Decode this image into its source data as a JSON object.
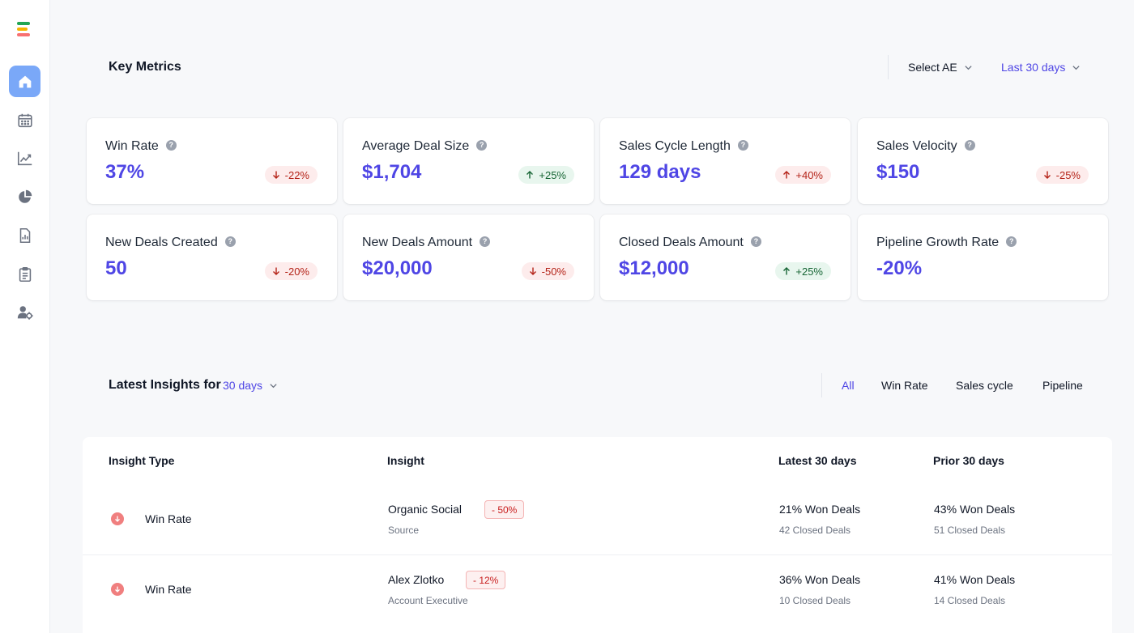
{
  "sidebar": {
    "logo_colors": [
      "#22a653",
      "#f5b400",
      "#f87171"
    ],
    "items": [
      {
        "icon": "home-icon",
        "active": true
      },
      {
        "icon": "calendar-icon",
        "active": false
      },
      {
        "icon": "trend-chart-icon",
        "active": false
      },
      {
        "icon": "pie-chart-icon",
        "active": false
      },
      {
        "icon": "report-icon",
        "active": false
      },
      {
        "icon": "clipboard-icon",
        "active": false
      },
      {
        "icon": "user-settings-icon",
        "active": false
      }
    ]
  },
  "header": {
    "title": "Key Metrics",
    "select_ae": "Select AE",
    "date_range": "Last 30 days"
  },
  "metrics": [
    {
      "label": "Win Rate",
      "value": "37%",
      "change": "-22%",
      "direction": "down",
      "tone": "negative"
    },
    {
      "label": "Average Deal Size",
      "value": "$1,704",
      "change": "+25%",
      "direction": "up",
      "tone": "positive"
    },
    {
      "label": "Sales Cycle Length",
      "value": "129 days",
      "change": "+40%",
      "direction": "up",
      "tone": "negative"
    },
    {
      "label": "Sales Velocity",
      "value": "$150",
      "change": "-25%",
      "direction": "down",
      "tone": "negative"
    },
    {
      "label": "New Deals Created",
      "value": "50",
      "change": "-20%",
      "direction": "down",
      "tone": "negative"
    },
    {
      "label": "New Deals Amount",
      "value": "$20,000",
      "change": "-50%",
      "direction": "down",
      "tone": "negative"
    },
    {
      "label": "Closed Deals Amount",
      "value": "$12,000",
      "change": "+25%",
      "direction": "up",
      "tone": "positive"
    },
    {
      "label": "Pipeline Growth Rate",
      "value": "-20%",
      "change": null
    }
  ],
  "insights": {
    "title_prefix": "Latest Insights for",
    "period": "30 days",
    "filters": [
      "All",
      "Win Rate",
      "Sales cycle",
      "Pipeline"
    ],
    "active_filter": "All",
    "columns": [
      "Insight Type",
      "Insight",
      "Latest 30 days",
      "Prior 30 days"
    ],
    "rows": [
      {
        "type": "Win Rate",
        "insight": "Organic Social",
        "change": "- 50%",
        "category": "Source",
        "latest_main": "21% Won Deals",
        "latest_sub": "42 Closed Deals",
        "prior_main": "43% Won Deals",
        "prior_sub": "51 Closed Deals"
      },
      {
        "type": "Win Rate",
        "insight": "Alex Zlotko",
        "change": "- 12%",
        "category": "Account Executive",
        "latest_main": "36% Won Deals",
        "latest_sub": "10 Closed Deals",
        "prior_main": "41% Won Deals",
        "prior_sub": "14 Closed Deals"
      }
    ]
  }
}
